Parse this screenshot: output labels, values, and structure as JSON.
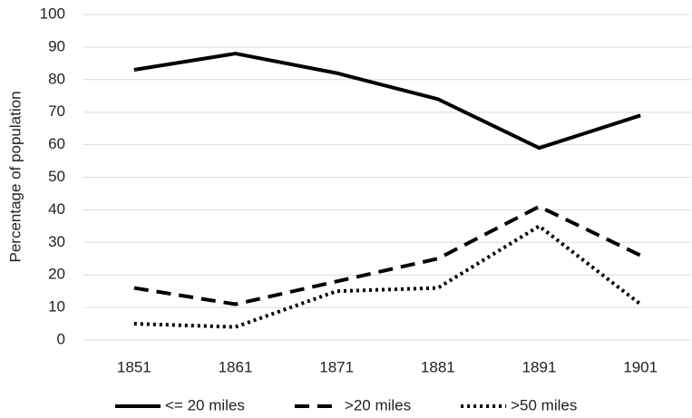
{
  "chart_data": {
    "type": "line",
    "ylabel": "Percentage of population",
    "categories": [
      "1851",
      "1861",
      "1871",
      "1881",
      "1891",
      "1901"
    ],
    "series": [
      {
        "name": "<= 20 miles",
        "color": "#000000",
        "dash": "solid",
        "values": [
          83,
          88,
          82,
          74,
          59,
          69
        ]
      },
      {
        "name": ">20 miles",
        "color": "#000000",
        "dash": "dashed",
        "values": [
          16,
          11,
          18,
          25,
          41,
          26
        ]
      },
      {
        "name": ">50 miles",
        "color": "#000000",
        "dash": "dotted",
        "values": [
          5,
          4,
          15,
          16,
          35,
          11
        ]
      }
    ],
    "ylim": [
      0,
      100
    ],
    "yticks": [
      0,
      10,
      20,
      30,
      40,
      50,
      60,
      70,
      80,
      90,
      100
    ],
    "grid": true,
    "legend": "bottom"
  }
}
